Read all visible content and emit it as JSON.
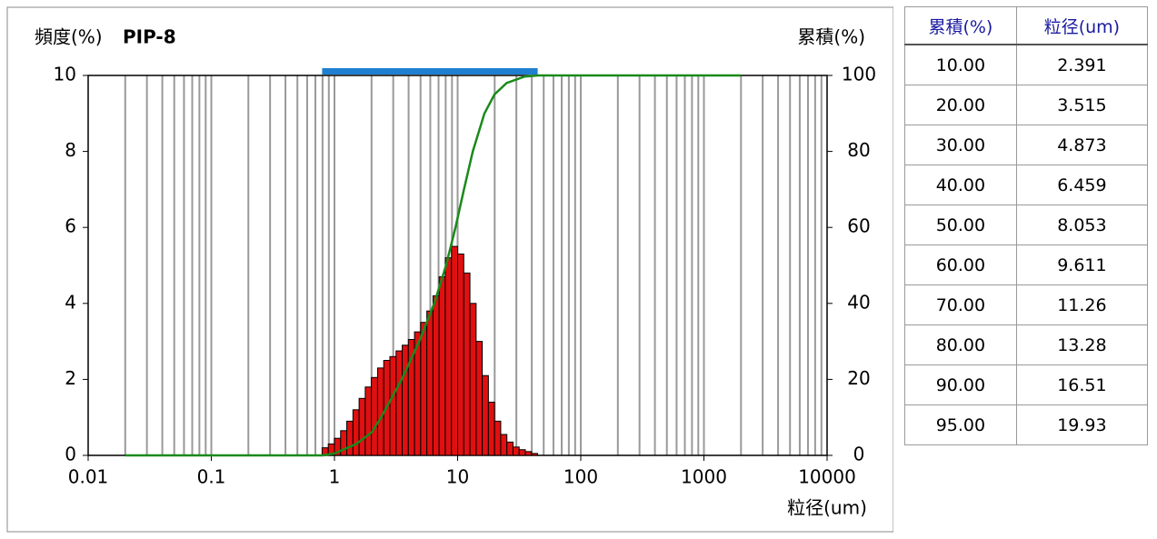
{
  "chart_data": {
    "type": "histogram",
    "y_label": "頻度(%)",
    "title": "PIP-8",
    "y2_label": "累積(%)",
    "x_label": "粒径(um)",
    "xscale": "log",
    "xlim": [
      0.01,
      10000
    ],
    "xticks": [
      0.01,
      0.1,
      1,
      10,
      100,
      1000,
      10000
    ],
    "ylim": [
      0,
      10
    ],
    "yticks": [
      0,
      2,
      4,
      6,
      8,
      10
    ],
    "y2lim": [
      0,
      100
    ],
    "y2ticks": [
      0,
      20,
      40,
      60,
      80,
      100
    ],
    "x_grid": [
      0.02,
      0.03,
      0.04,
      0.05,
      0.06,
      0.07,
      0.08,
      0.09,
      0.1,
      0.2,
      0.3,
      0.4,
      0.5,
      0.6,
      0.7,
      0.8,
      0.9,
      1,
      2,
      3,
      4,
      5,
      6,
      7,
      8,
      9,
      10,
      20,
      30,
      40,
      50,
      60,
      70,
      80,
      90,
      100,
      200,
      300,
      400,
      500,
      600,
      700,
      800,
      900,
      1000,
      2000,
      3000,
      4000,
      5000,
      6000,
      7000,
      8000,
      9000
    ],
    "bins": [
      0.794,
      0.891,
      1,
      1.122,
      1.259,
      1.413,
      1.585,
      1.778,
      1.995,
      2.239,
      2.512,
      2.818,
      3.162,
      3.548,
      3.981,
      4.467,
      5.012,
      5.623,
      6.31,
      7.079,
      7.943,
      8.913,
      10,
      11.22,
      12.59,
      14.13,
      15.85,
      17.78,
      19.95,
      22.39,
      25.12,
      28.18,
      31.62,
      35.48,
      39.81,
      44.67
    ],
    "values": [
      0.2,
      0.3,
      0.45,
      0.65,
      0.9,
      1.2,
      1.5,
      1.8,
      2.05,
      2.3,
      2.5,
      2.6,
      2.75,
      2.9,
      3.05,
      3.25,
      3.5,
      3.8,
      4.2,
      4.7,
      5.2,
      5.5,
      5.3,
      4.8,
      4.0,
      3.0,
      2.1,
      1.4,
      0.9,
      0.55,
      0.35,
      0.22,
      0.15,
      0.1,
      0.05
    ],
    "color": "#e01010",
    "line": {
      "axis": "y2",
      "color": "#1a8a1a",
      "x": [
        0.02,
        0.8,
        1,
        1.5,
        2,
        2.391,
        3.515,
        4.873,
        6.459,
        8.053,
        9.611,
        11.26,
        13.28,
        16.51,
        19.93,
        25,
        35,
        45,
        2000
      ],
      "values": [
        0,
        0,
        0.5,
        3,
        6,
        10,
        20,
        30,
        40,
        50,
        60,
        70,
        80,
        90,
        95,
        98,
        99.7,
        100,
        100
      ]
    },
    "range_bar": {
      "range": [
        0.794,
        44.67
      ],
      "color": "#1e7fd0"
    }
  },
  "table": {
    "header": [
      "累積(%)",
      "粒径(um)"
    ],
    "rows": [
      [
        "10.00",
        "2.391"
      ],
      [
        "20.00",
        "3.515"
      ],
      [
        "30.00",
        "4.873"
      ],
      [
        "40.00",
        "6.459"
      ],
      [
        "50.00",
        "8.053"
      ],
      [
        "60.00",
        "9.611"
      ],
      [
        "70.00",
        "11.26"
      ],
      [
        "80.00",
        "13.28"
      ],
      [
        "90.00",
        "16.51"
      ],
      [
        "95.00",
        "19.93"
      ]
    ]
  }
}
